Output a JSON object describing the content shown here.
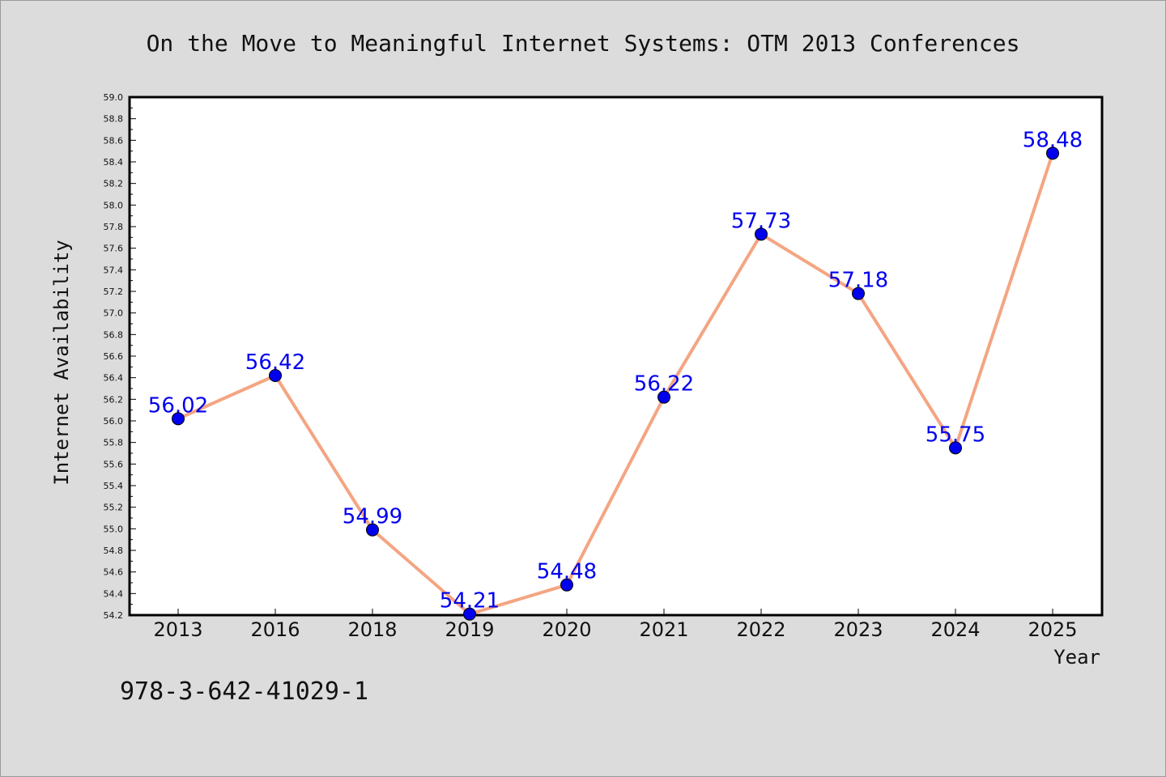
{
  "chart_data": {
    "type": "line",
    "title": "On the Move to Meaningful Internet Systems: OTM 2013 Conferences",
    "xlabel": "Year",
    "ylabel": "Internet Availability",
    "categories": [
      "2013",
      "2016",
      "2018",
      "2019",
      "2020",
      "2021",
      "2022",
      "2023",
      "2024",
      "2025"
    ],
    "series": [
      {
        "values": [
          56.02,
          56.42,
          54.99,
          54.21,
          54.48,
          56.22,
          57.73,
          57.18,
          55.75,
          58.48
        ],
        "data_labels": [
          "56.02",
          "56.42",
          "54.99",
          "54.21",
          "54.48",
          "56.22",
          "57.73",
          "57.18",
          "55.75",
          "58.48"
        ],
        "line_color": "#f4a582",
        "marker_color": "#0000ee",
        "label_color": "#0000ee"
      }
    ],
    "ylim": [
      54.2,
      59.0
    ],
    "ytick_step": 0.2,
    "ytick_labels": [
      "54.2",
      "54.4",
      "54.6",
      "54.8",
      "55.0",
      "55.2",
      "55.4",
      "55.6",
      "55.8",
      "56.0",
      "56.2",
      "56.4",
      "56.6",
      "56.8",
      "57.0",
      "57.2",
      "57.4",
      "57.6",
      "57.8",
      "58.0",
      "58.2",
      "58.4",
      "58.6",
      "58.8",
      "59.0"
    ],
    "grid": false,
    "legend": "none"
  },
  "footnote": "978-3-642-41029-1",
  "colors": {
    "background": "#dcdcdc",
    "plot_background": "#ffffff",
    "axis": "#000000"
  }
}
